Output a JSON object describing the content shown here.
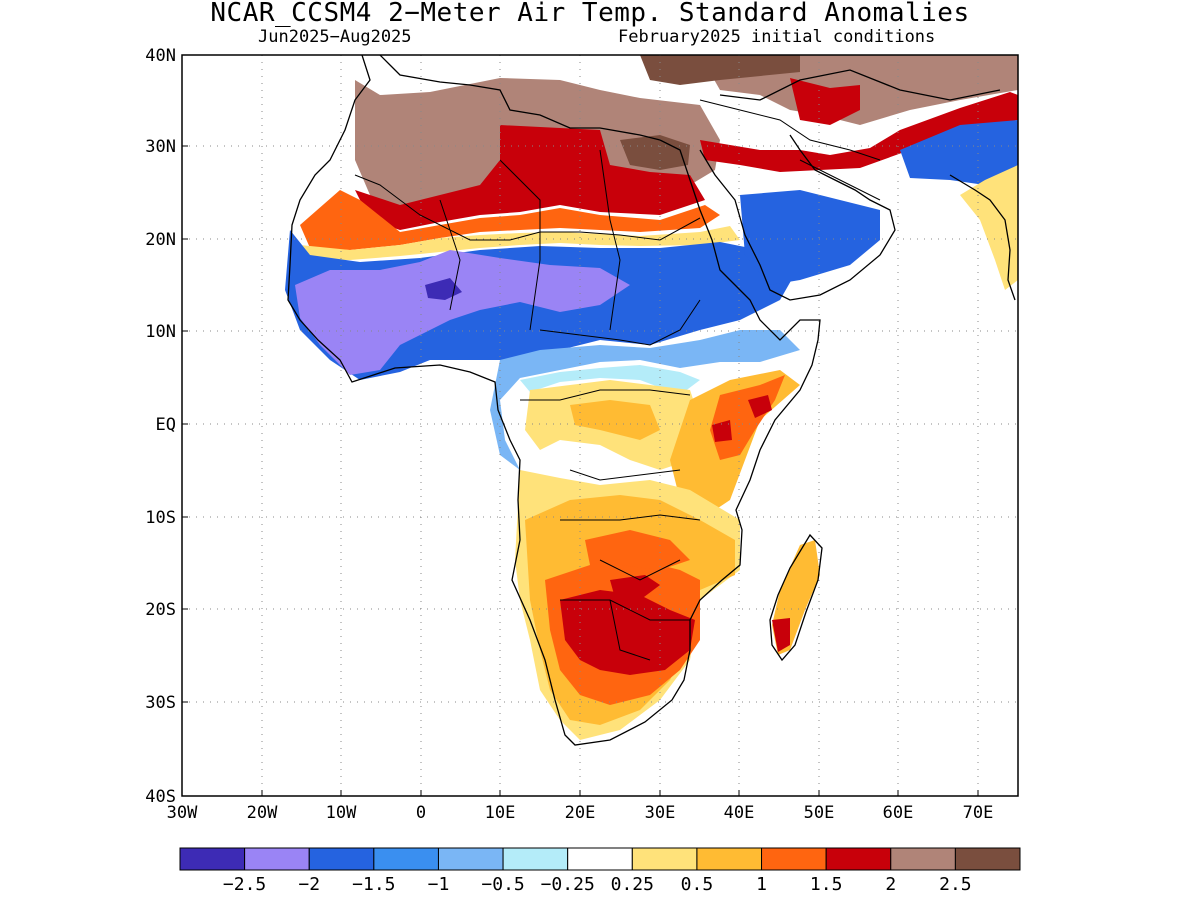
{
  "title": "NCAR_CCSM4 2−Meter Air Temp. Standard Anomalies",
  "subtitle_left": "Jun2025−Aug2025",
  "subtitle_right": "February2025 initial conditions",
  "lat_labels": [
    "40N",
    "30N",
    "20N",
    "10N",
    "EQ",
    "10S",
    "20S",
    "30S",
    "40S"
  ],
  "lon_labels": [
    "30W",
    "20W",
    "10W",
    "0",
    "10E",
    "20E",
    "30E",
    "40E",
    "50E",
    "60E",
    "70E"
  ],
  "colorbar": {
    "colors": [
      "#3d2bb5",
      "#9a84f5",
      "#2563e0",
      "#3a8ff0",
      "#7ab6f5",
      "#b4ecf9",
      "#ffffff",
      "#ffe27a",
      "#ffbb33",
      "#ff6510",
      "#c8000a",
      "#b08478",
      "#7a4e3e"
    ],
    "labels": [
      "−2.5",
      "−2",
      "−1.5",
      "−1",
      "−0.5",
      "−0.25",
      "0.25",
      "0.5",
      "1",
      "1.5",
      "2",
      "2.5"
    ]
  },
  "legend_colors": {
    "brown": "#b08478",
    "dark_brown": "#7a4e3e",
    "red": "#c8000a",
    "orange": "#ff6510",
    "light_orange": "#ffbb33",
    "yellow": "#ffe27a",
    "cyan": "#b4ecf9",
    "light_blue": "#7ab6f5",
    "medium_blue": "#3a8ff0",
    "blue": "#2563e0",
    "purple": "#9a84f5",
    "dark_purple": "#3d2bb5"
  }
}
